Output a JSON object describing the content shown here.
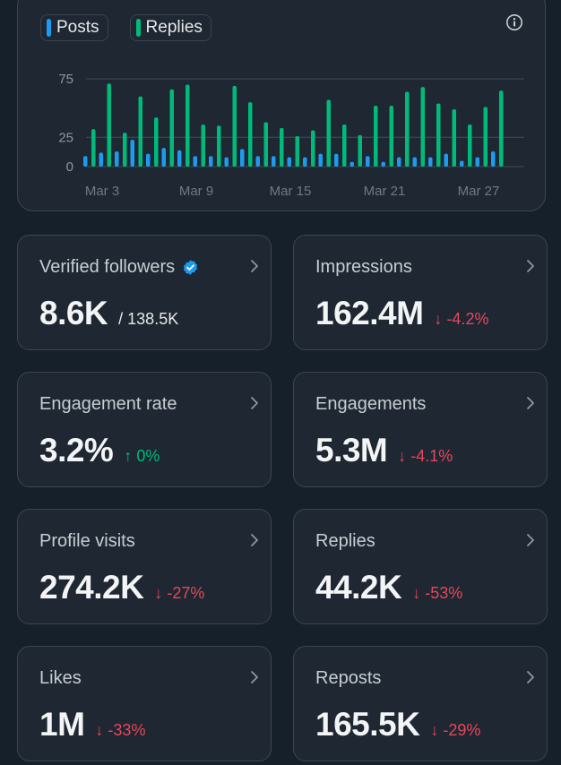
{
  "legend": [
    {
      "label": "Posts",
      "color": "#1d9bf0"
    },
    {
      "label": "Replies",
      "color": "#00ba7c"
    }
  ],
  "info_icon": "info-icon",
  "chart_data": {
    "type": "bar",
    "title": "",
    "xlabel": "",
    "ylabel": "",
    "ylim": [
      0,
      75
    ],
    "yticks": [
      "0",
      "25",
      "75"
    ],
    "ytick_values": [
      0,
      25,
      75
    ],
    "grid": true,
    "legend_position": "top-left",
    "x_tick_labels": [
      "Mar 3",
      "Mar 9",
      "Mar 15",
      "Mar 21",
      "Mar 27"
    ],
    "x_tick_index": [
      0,
      6,
      12,
      18,
      24
    ],
    "categories": [
      "Mar 3",
      "Mar 4",
      "Mar 5",
      "Mar 6",
      "Mar 7",
      "Mar 8",
      "Mar 9",
      "Mar 10",
      "Mar 11",
      "Mar 12",
      "Mar 13",
      "Mar 14",
      "Mar 15",
      "Mar 16",
      "Mar 17",
      "Mar 18",
      "Mar 19",
      "Mar 20",
      "Mar 21",
      "Mar 22",
      "Mar 23",
      "Mar 24",
      "Mar 25",
      "Mar 26",
      "Mar 27",
      "Mar 28",
      "Mar 29"
    ],
    "series": [
      {
        "name": "Posts",
        "color": "#1d9bf0",
        "values": [
          9,
          12,
          13,
          23,
          11,
          16,
          14,
          9,
          9,
          8,
          15,
          9,
          9,
          8,
          8,
          11,
          11,
          4,
          9,
          4,
          8,
          8,
          8,
          11,
          5,
          8,
          13
        ]
      },
      {
        "name": "Replies",
        "color": "#00ba7c",
        "values": [
          32,
          71,
          29,
          60,
          42,
          66,
          70,
          36,
          35,
          69,
          55,
          38,
          33,
          26,
          31,
          57,
          36,
          27,
          52,
          52,
          64,
          68,
          54,
          49,
          36,
          51,
          65
        ]
      }
    ]
  },
  "stats": [
    {
      "label": "Verified followers",
      "value": "8.6K",
      "sub": "/ 138.5K",
      "delta": "",
      "dir": "",
      "verified": true
    },
    {
      "label": "Impressions",
      "value": "162.4M",
      "sub": "",
      "delta": "-4.2%",
      "dir": "down",
      "verified": false
    },
    {
      "label": "Engagement rate",
      "value": "3.2%",
      "sub": "",
      "delta": "0%",
      "dir": "up",
      "verified": false
    },
    {
      "label": "Engagements",
      "value": "5.3M",
      "sub": "",
      "delta": "-4.1%",
      "dir": "down",
      "verified": false
    },
    {
      "label": "Profile visits",
      "value": "274.2K",
      "sub": "",
      "delta": "-27%",
      "dir": "down",
      "verified": false
    },
    {
      "label": "Replies",
      "value": "44.2K",
      "sub": "",
      "delta": "-53%",
      "dir": "down",
      "verified": false
    },
    {
      "label": "Likes",
      "value": "1M",
      "sub": "",
      "delta": "-33%",
      "dir": "down",
      "verified": false
    },
    {
      "label": "Reposts",
      "value": "165.5K",
      "sub": "",
      "delta": "-29%",
      "dir": "down",
      "verified": false
    }
  ],
  "arrows": {
    "down": "↓",
    "up": "↑"
  }
}
